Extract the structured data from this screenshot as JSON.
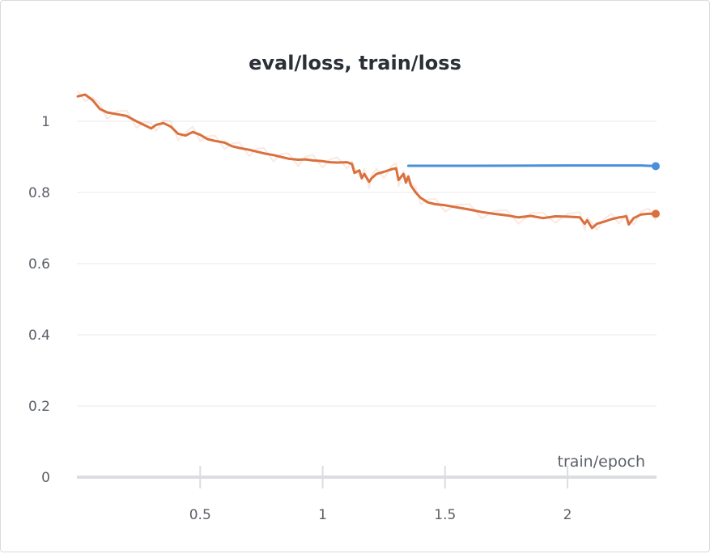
{
  "chart_data": {
    "type": "line",
    "title": "eval/loss, train/loss",
    "xlabel": "train/epoch",
    "ylabel": "",
    "xlim": [
      0.0,
      2.36
    ],
    "ylim": [
      0,
      1.1
    ],
    "x_ticks": [
      0.5,
      1,
      1.5,
      2
    ],
    "x_tick_labels": [
      "0.5",
      "1",
      "1.5",
      "2"
    ],
    "y_ticks": [
      0,
      0.2,
      0.4,
      0.6,
      0.8,
      1
    ],
    "y_tick_labels": [
      "0",
      "0.2",
      "0.4",
      "0.6",
      "0.8",
      "1"
    ],
    "grid": true,
    "series": [
      {
        "color": "#4a8fd9",
        "x": [
          1.35,
          1.6,
          2.0,
          2.3,
          2.36
        ],
        "y": [
          0.875,
          0.875,
          0.876,
          0.876,
          0.874
        ],
        "end_marker": true
      },
      {
        "color": "#d9703d",
        "x": [
          0.0,
          0.03,
          0.06,
          0.09,
          0.12,
          0.16,
          0.2,
          0.24,
          0.27,
          0.3,
          0.32,
          0.35,
          0.38,
          0.41,
          0.44,
          0.47,
          0.5,
          0.53,
          0.56,
          0.6,
          0.63,
          0.66,
          0.7,
          0.73,
          0.76,
          0.8,
          0.83,
          0.86,
          0.9,
          0.93,
          0.96,
          1.0,
          1.03,
          1.06,
          1.1,
          1.12,
          1.13,
          1.15,
          1.16,
          1.17,
          1.19,
          1.2,
          1.22,
          1.25,
          1.28,
          1.3,
          1.31,
          1.33,
          1.34,
          1.35,
          1.36,
          1.38,
          1.4,
          1.43,
          1.46,
          1.5,
          1.55,
          1.6,
          1.65,
          1.7,
          1.75,
          1.8,
          1.85,
          1.9,
          1.95,
          2.0,
          2.05,
          2.07,
          2.08,
          2.1,
          2.12,
          2.15,
          2.18,
          2.21,
          2.24,
          2.25,
          2.27,
          2.3,
          2.33,
          2.36
        ],
        "y": [
          1.07,
          1.075,
          1.06,
          1.035,
          1.025,
          1.02,
          1.015,
          1.0,
          0.99,
          0.98,
          0.99,
          0.995,
          0.985,
          0.965,
          0.96,
          0.97,
          0.962,
          0.95,
          0.945,
          0.94,
          0.93,
          0.925,
          0.92,
          0.915,
          0.91,
          0.905,
          0.9,
          0.895,
          0.892,
          0.893,
          0.89,
          0.888,
          0.885,
          0.884,
          0.885,
          0.88,
          0.855,
          0.862,
          0.84,
          0.852,
          0.83,
          0.84,
          0.852,
          0.858,
          0.865,
          0.868,
          0.835,
          0.852,
          0.828,
          0.845,
          0.82,
          0.8,
          0.785,
          0.772,
          0.767,
          0.764,
          0.758,
          0.752,
          0.745,
          0.74,
          0.736,
          0.73,
          0.734,
          0.728,
          0.733,
          0.732,
          0.73,
          0.712,
          0.722,
          0.7,
          0.712,
          0.718,
          0.725,
          0.73,
          0.733,
          0.71,
          0.728,
          0.738,
          0.74,
          0.74
        ],
        "end_marker": true
      }
    ]
  }
}
